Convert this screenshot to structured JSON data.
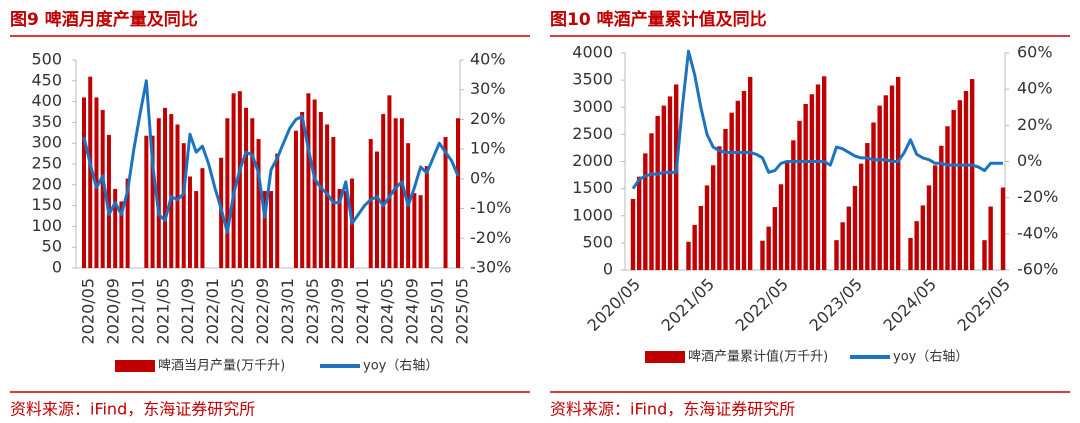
{
  "chart_data": [
    {
      "type": "bar_line",
      "title": "图9  啤酒月度产量及同比",
      "source": "资料来源：iFind，东海证券研究所",
      "categories": [
        "2020/05",
        null,
        null,
        null,
        "2020/09",
        null,
        null,
        null,
        "2021/01",
        null,
        null,
        null,
        "2021/05",
        null,
        null,
        null,
        "2021/09",
        null,
        null,
        null,
        "2022/01",
        null,
        null,
        null,
        "2022/05",
        null,
        null,
        null,
        "2022/09",
        null,
        null,
        null,
        "2023/01",
        null,
        null,
        null,
        "2023/05",
        null,
        null,
        null,
        "2023/09",
        null,
        null,
        null,
        "2024/01",
        null,
        null,
        null,
        "2024/05",
        null,
        null,
        null,
        "2024/09",
        null,
        null,
        null,
        "2025/01",
        null,
        null,
        null,
        "2025/05"
      ],
      "series": [
        {
          "name": "啤酒当月产量(万千升)",
          "color": "#c00000",
          "values": [
            410,
            460,
            410,
            380,
            320,
            190,
            160,
            215,
            null,
            null,
            318,
            318,
            360,
            385,
            370,
            345,
            300,
            220,
            185,
            240,
            null,
            null,
            265,
            360,
            420,
            425,
            385,
            360,
            310,
            185,
            185,
            275,
            null,
            null,
            330,
            375,
            420,
            405,
            375,
            345,
            315,
            190,
            185,
            215,
            null,
            null,
            310,
            280,
            370,
            415,
            360,
            360,
            300,
            180,
            175,
            245,
            null,
            null,
            315,
            null,
            360
          ]
        },
        {
          "name": "yoy（右轴）",
          "color": "#1c74c0",
          "axis": "y2",
          "values": [
            14,
            5,
            -3,
            1,
            -12,
            -8,
            -12,
            -4,
            10,
            22,
            33,
            5,
            -12,
            -14,
            -6,
            -7,
            -5,
            15,
            9,
            11,
            5,
            -3,
            -10,
            -18,
            -5,
            3,
            9,
            8,
            2,
            -13,
            3,
            7,
            12,
            17,
            20,
            21,
            10,
            0,
            -3,
            -5,
            -8,
            -8,
            -1,
            -15,
            -12,
            -9,
            -7,
            -6,
            -9,
            -6,
            -3,
            -1,
            -9,
            -3,
            4,
            2,
            7,
            12,
            9,
            6,
            1
          ]
        }
      ],
      "ylim": [
        0,
        500
      ],
      "yticks": [
        0,
        50,
        100,
        150,
        200,
        250,
        300,
        350,
        400,
        450,
        500
      ],
      "y2lim": [
        -30,
        40
      ],
      "y2ticks": [
        {
          "value": -30,
          "label": "-30%"
        },
        {
          "value": -20,
          "label": "-20%"
        },
        {
          "value": -10,
          "label": "-10%"
        },
        {
          "value": 0,
          "label": "0%"
        },
        {
          "value": 10,
          "label": "10%"
        },
        {
          "value": 20,
          "label": "20%"
        },
        {
          "value": 30,
          "label": "30%"
        },
        {
          "value": 40,
          "label": "40%"
        }
      ],
      "legend": "bottom"
    },
    {
      "type": "bar_line",
      "title": "图10  啤酒产量累计值及同比",
      "source": "资料来源：iFind，东海证券研究所",
      "categories": [
        "2020/05",
        null,
        null,
        null,
        null,
        null,
        null,
        null,
        null,
        null,
        null,
        null,
        "2021/05",
        null,
        null,
        null,
        null,
        null,
        null,
        null,
        null,
        null,
        null,
        null,
        "2022/05",
        null,
        null,
        null,
        null,
        null,
        null,
        null,
        null,
        null,
        null,
        null,
        "2023/05",
        null,
        null,
        null,
        null,
        null,
        null,
        null,
        null,
        null,
        null,
        null,
        "2024/05",
        null,
        null,
        null,
        null,
        null,
        null,
        null,
        null,
        null,
        null,
        null,
        "2025/05"
      ],
      "series": [
        {
          "name": "啤酒产量累计值(万千升)",
          "color": "#c00000",
          "values": [
            1310,
            1720,
            2150,
            2520,
            2840,
            3030,
            3200,
            3420,
            null,
            520,
            830,
            1180,
            1560,
            1930,
            2280,
            2600,
            2900,
            3120,
            3300,
            3560,
            null,
            540,
            800,
            1160,
            1580,
            2000,
            2390,
            2750,
            3060,
            3240,
            3420,
            3570,
            null,
            550,
            880,
            1170,
            1550,
            1960,
            2340,
            2720,
            3030,
            3220,
            3400,
            3560,
            null,
            590,
            900,
            1190,
            1560,
            1930,
            2290,
            2650,
            2950,
            3130,
            3300,
            3520,
            null,
            550,
            1170,
            null,
            1520
          ]
        },
        {
          "name": "yoy（右轴）",
          "color": "#1c74c0",
          "axis": "y2",
          "values": [
            -15,
            -10,
            -8,
            -7,
            -7,
            -6,
            -6,
            -6,
            30,
            61,
            48,
            30,
            15,
            8,
            6,
            5,
            5,
            5,
            5,
            5,
            4,
            2,
            -6,
            -5,
            -1,
            0,
            0,
            0,
            0,
            0,
            0,
            0,
            -2,
            8,
            7,
            5,
            3,
            2,
            2,
            1,
            1,
            1,
            0,
            0,
            5,
            12,
            4,
            2,
            1,
            -1,
            -1,
            -2,
            -2,
            -2,
            -2,
            -2,
            -3,
            -5,
            -1,
            -1,
            -1
          ]
        }
      ],
      "ylim": [
        0,
        4000
      ],
      "yticks": [
        0,
        500,
        1000,
        1500,
        2000,
        2500,
        3000,
        3500,
        4000
      ],
      "y2lim": [
        -60,
        60
      ],
      "y2ticks": [
        {
          "value": -60,
          "label": "-60%"
        },
        {
          "value": -40,
          "label": "-40%"
        },
        {
          "value": -20,
          "label": "-20%"
        },
        {
          "value": 0,
          "label": "0%"
        },
        {
          "value": 20,
          "label": "20%"
        },
        {
          "value": 40,
          "label": "40%"
        },
        {
          "value": 60,
          "label": "60%"
        }
      ],
      "legend": "bottom"
    }
  ]
}
